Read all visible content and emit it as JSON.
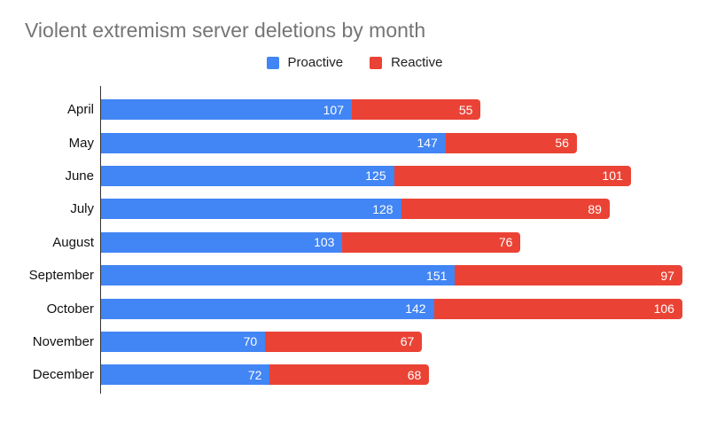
{
  "title": "Violent extremism server deletions by month",
  "legend": {
    "items": [
      {
        "label": "Proactive",
        "color": "#4285F4"
      },
      {
        "label": "Reactive",
        "color": "#EA4335"
      }
    ],
    "position": "top-center"
  },
  "chart_data": {
    "type": "bar",
    "orientation": "horizontal",
    "stacked": true,
    "title": "Violent extremism server deletions by month",
    "xlabel": "",
    "ylabel": "",
    "grid": false,
    "axis_range": [
      0,
      260
    ],
    "legend_position": "top-center",
    "value_labels": "inside segment end, white",
    "categories": [
      "April",
      "May",
      "June",
      "July",
      "August",
      "September",
      "October",
      "November",
      "December"
    ],
    "series": [
      {
        "name": "Proactive",
        "color": "#4285F4",
        "values": [
          107,
          147,
          125,
          128,
          103,
          151,
          142,
          70,
          72
        ]
      },
      {
        "name": "Reactive",
        "color": "#EA4335",
        "values": [
          55,
          56,
          101,
          89,
          76,
          97,
          106,
          67,
          68
        ]
      }
    ],
    "totals": [
      162,
      203,
      226,
      217,
      179,
      248,
      248,
      137,
      140
    ]
  }
}
